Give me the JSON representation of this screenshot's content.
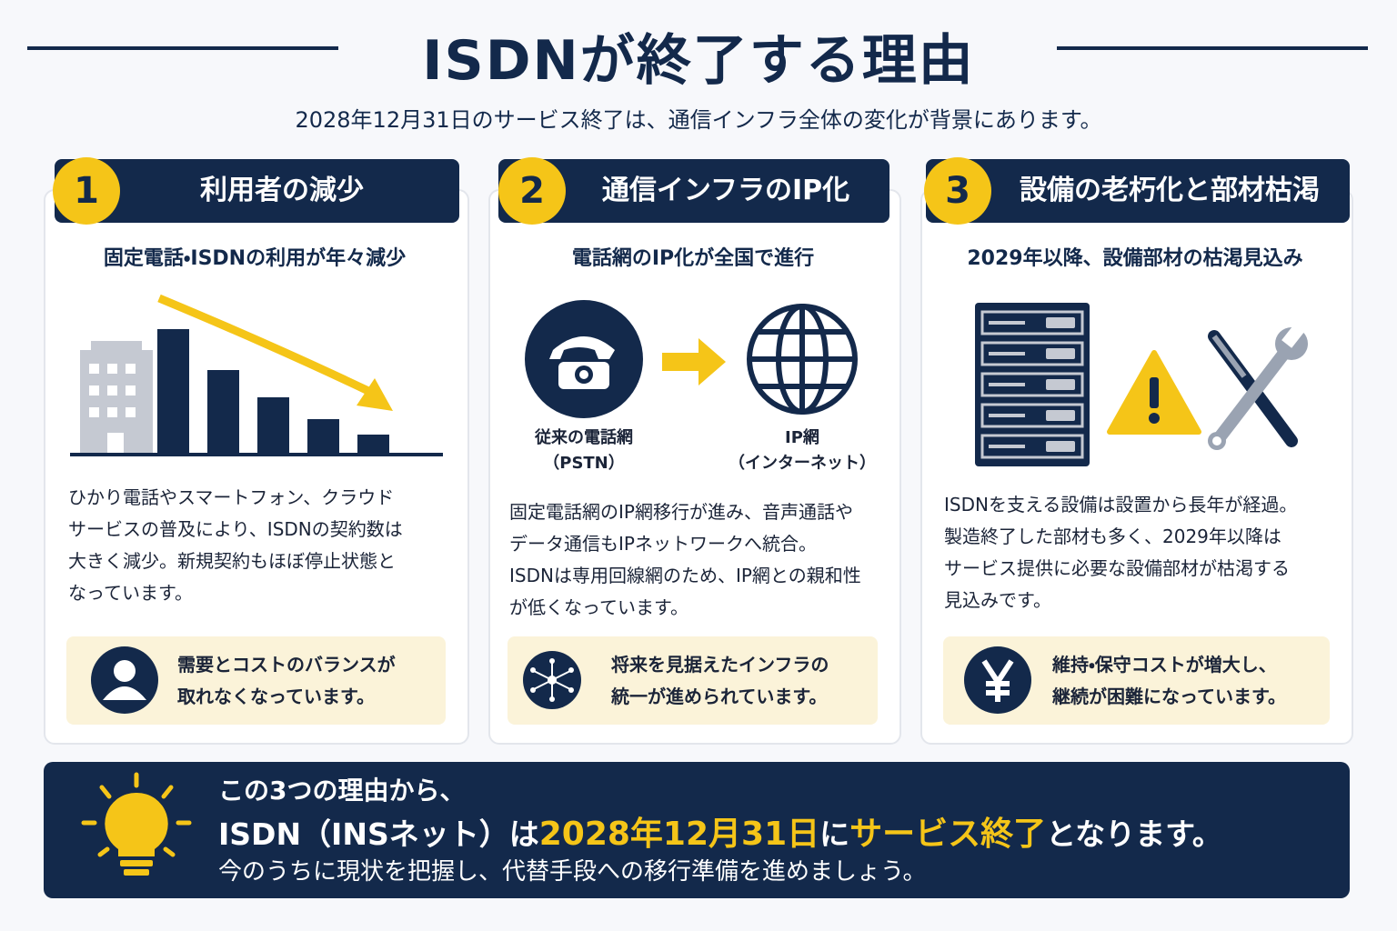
{
  "header": {
    "title": "ISDNが終了する理由",
    "subtitle": "2028年12月31日のサービス終了は、通信インフラ全体の変化が背景にあります。"
  },
  "cards": [
    {
      "number": "1",
      "title": "利用者の減少",
      "heading": "固定電話・ISDNの利用が年々減少",
      "body": [
        "ひかり電話やスマートフォン、クラウド",
        "サービスの普及により、ISDNの契約数は",
        "大きく減少。新規契約もほぼ停止状態と",
        "なっています。"
      ],
      "note": [
        "需要とコストのバランスが",
        "取れなくなっています。"
      ]
    },
    {
      "number": "2",
      "title": "通信インフラのIP化",
      "heading": "電話網のIP化が全国で進行",
      "labels": [
        [
          "従来の電話網",
          "（PSTN）"
        ],
        [
          "IP網",
          "（インターネット）"
        ]
      ],
      "body": [
        "固定電話網のIP網移行が進み、音声通話や",
        "データ通信もIPネットワークへ統合。",
        "ISDNは専用回線網のため、IP網との親和性",
        "が低くなっています。"
      ],
      "note": [
        "将来を見据えたインフラの",
        "統一が進められています。"
      ]
    },
    {
      "number": "3",
      "title": "設備の老朽化と部材枯渇",
      "heading": "2029年以降、設備部材の枯渇見込み",
      "body": [
        "ISDNを支える設備は設置から長年が経過。",
        "製造終了した部材も多く、2029年以降は",
        "サービス提供に必要な設備部材が枯渇する",
        "見込みです。"
      ],
      "note": [
        "維持・保守コストが増大し、",
        "継続が困難になっています。"
      ]
    }
  ],
  "summary": {
    "line1": "この3つの理由から、",
    "line2": [
      "ISDN（INSネット）は",
      "2028年12月31日",
      "に",
      "サービス終了",
      "となります。"
    ],
    "line3": "今のうちに現状を把握し、代替手段への移行準備を進めましょう。"
  }
}
